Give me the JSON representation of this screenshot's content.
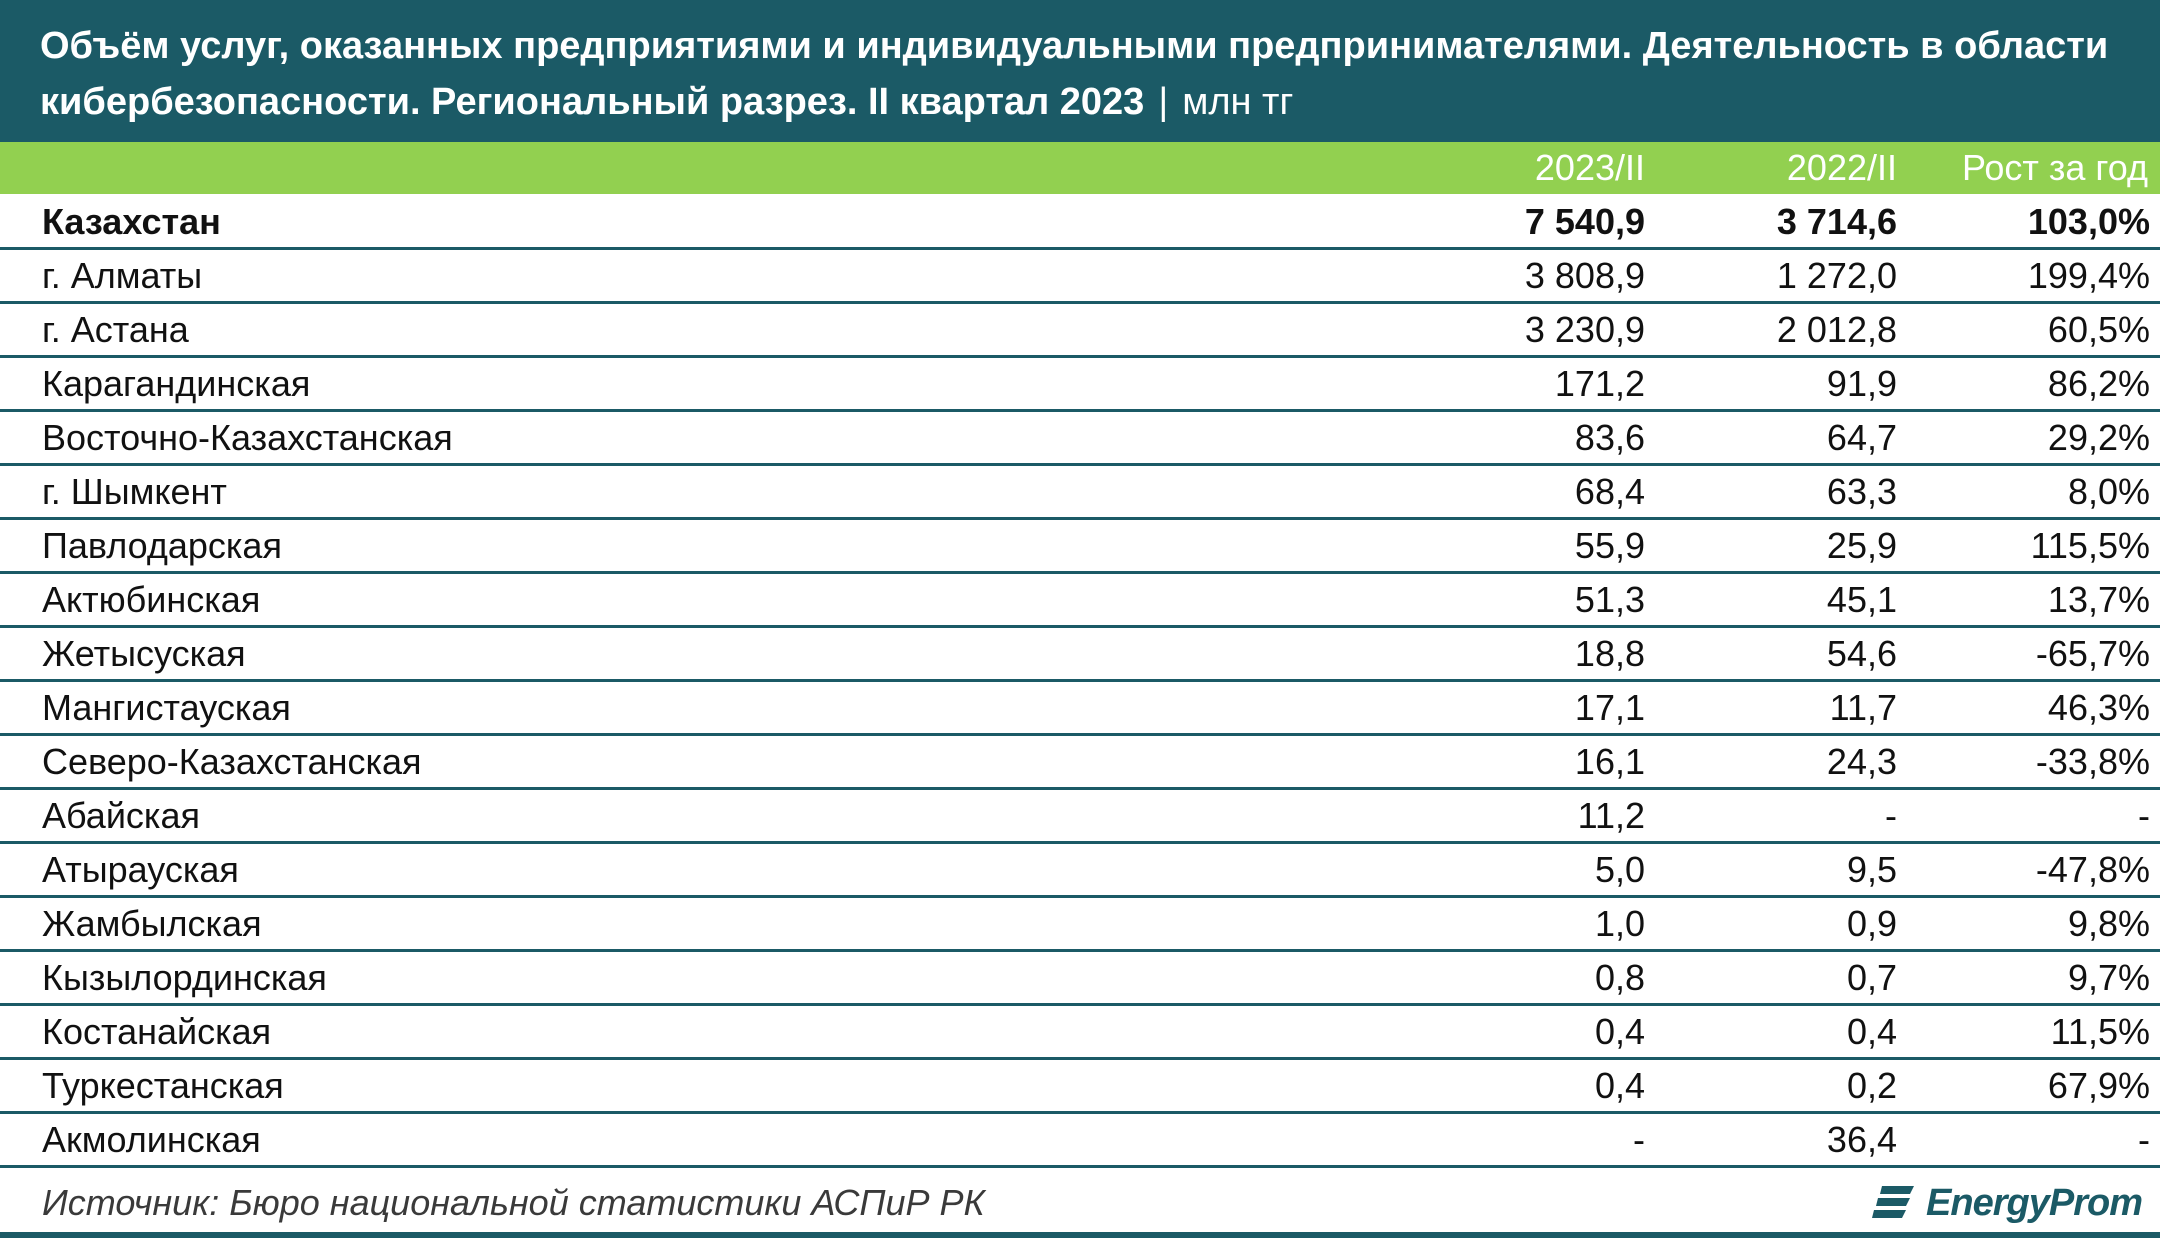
{
  "header": {
    "title_line1": "Объём услуг, оказанных предприятиями и индивидуальными предпринимателями. Деятельность в области",
    "title_line2": "кибербезопасности. Региональный разрез. II квартал 2023",
    "separator": "|",
    "unit": "млн тг"
  },
  "columns": {
    "v2023": "2023/II",
    "v2022": "2022/II",
    "growth": "Рост за год"
  },
  "colors": {
    "header_bg": "#1b5a66",
    "accent_green": "#92d050",
    "rule": "#1b5a66"
  },
  "chart_data": {
    "type": "table",
    "title": "Объём услуг, оказанных предприятиями и индивидуальными предпринимателями. Деятельность в области кибербезопасности. Региональный разрез. II квартал 2023",
    "unit": "млн тг",
    "columns": [
      "",
      "2023/II",
      "2022/II",
      "Рост за год"
    ],
    "rows": [
      {
        "name": "Казахстан",
        "v2023": "7 540,9",
        "v2022": "3 714,6",
        "growth": "103,0%"
      },
      {
        "name": "г. Алматы",
        "v2023": "3 808,9",
        "v2022": "1 272,0",
        "growth": "199,4%"
      },
      {
        "name": "г. Астана",
        "v2023": "3 230,9",
        "v2022": "2 012,8",
        "growth": "60,5%"
      },
      {
        "name": "Карагандинская",
        "v2023": "171,2",
        "v2022": "91,9",
        "growth": "86,2%"
      },
      {
        "name": "Восточно-Казахстанская",
        "v2023": "83,6",
        "v2022": "64,7",
        "growth": "29,2%"
      },
      {
        "name": "г. Шымкент",
        "v2023": "68,4",
        "v2022": "63,3",
        "growth": "8,0%"
      },
      {
        "name": "Павлодарская",
        "v2023": "55,9",
        "v2022": "25,9",
        "growth": "115,5%"
      },
      {
        "name": "Актюбинская",
        "v2023": "51,3",
        "v2022": "45,1",
        "growth": "13,7%"
      },
      {
        "name": "Жетысуская",
        "v2023": "18,8",
        "v2022": "54,6",
        "growth": "-65,7%"
      },
      {
        "name": "Мангистауская",
        "v2023": "17,1",
        "v2022": "11,7",
        "growth": "46,3%"
      },
      {
        "name": "Северо-Казахстанская",
        "v2023": "16,1",
        "v2022": "24,3",
        "growth": "-33,8%"
      },
      {
        "name": "Абайская",
        "v2023": "11,2",
        "v2022": "-",
        "growth": "-"
      },
      {
        "name": "Атырауская",
        "v2023": "5,0",
        "v2022": "9,5",
        "growth": "-47,8%"
      },
      {
        "name": "Жамбылская",
        "v2023": "1,0",
        "v2022": "0,9",
        "growth": "9,8%"
      },
      {
        "name": "Кызылординская",
        "v2023": "0,8",
        "v2022": "0,7",
        "growth": "9,7%"
      },
      {
        "name": "Костанайская",
        "v2023": "0,4",
        "v2022": "0,4",
        "growth": "11,5%"
      },
      {
        "name": "Туркестанская",
        "v2023": "0,4",
        "v2022": "0,2",
        "growth": "67,9%"
      },
      {
        "name": "Акмолинская",
        "v2023": "-",
        "v2022": "36,4",
        "growth": "-"
      }
    ]
  },
  "footer": {
    "source": "Источник: Бюро национальной статистики АСПиР РК",
    "logo_text": "EnergyProm",
    "logo_icon": "energyprom-logo-icon"
  }
}
